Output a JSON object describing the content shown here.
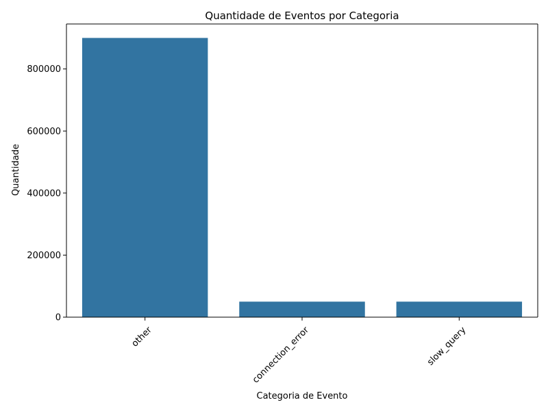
{
  "chart_data": {
    "type": "bar",
    "title": "Quantidade de Eventos por Categoria",
    "xlabel": "Categoria de Evento",
    "ylabel": "Quantidade",
    "categories": [
      "other",
      "connection_error",
      "slow_query"
    ],
    "values": [
      900000,
      50000,
      50000
    ],
    "ylim": [
      0,
      945000
    ],
    "yticks": [
      0,
      200000,
      400000,
      600000,
      800000
    ],
    "ytick_labels": [
      "0",
      "200000",
      "400000",
      "600000",
      "800000"
    ],
    "grid": false,
    "legend": "none",
    "xtick_rotation": 45,
    "colors": {
      "bar": "#3274a1",
      "axis": "#000000",
      "background": "#ffffff"
    }
  }
}
